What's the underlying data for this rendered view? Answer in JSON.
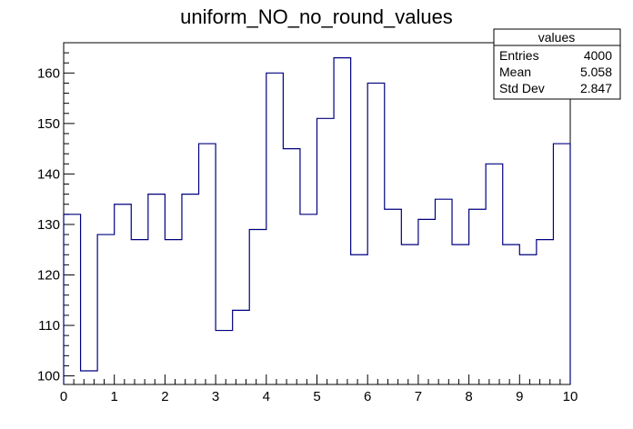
{
  "chart_data": {
    "type": "bar",
    "title": "uniform_NO_no_round_values",
    "bin_edges_start": 0,
    "bin_width": 0.3333333,
    "values": [
      132,
      101,
      128,
      134,
      127,
      136,
      127,
      136,
      146,
      109,
      113,
      129,
      160,
      145,
      132,
      151,
      163,
      124,
      158,
      133,
      126,
      131,
      135,
      126,
      133,
      142,
      126,
      124,
      127,
      146
    ],
    "xlim": [
      0,
      10
    ],
    "ylim": [
      98.3,
      166
    ],
    "x_ticks": [
      "0",
      "1",
      "2",
      "3",
      "4",
      "5",
      "6",
      "7",
      "8",
      "9",
      "10"
    ],
    "y_ticks": [
      "100",
      "110",
      "120",
      "130",
      "140",
      "150",
      "160"
    ],
    "line_color": "#000080",
    "grid": false,
    "stats_box": {
      "title": "values",
      "rows": [
        {
          "label": "Entries",
          "value": "4000"
        },
        {
          "label": "Mean",
          "value": "5.058"
        },
        {
          "label": "Std Dev",
          "value": "2.847"
        }
      ]
    }
  }
}
